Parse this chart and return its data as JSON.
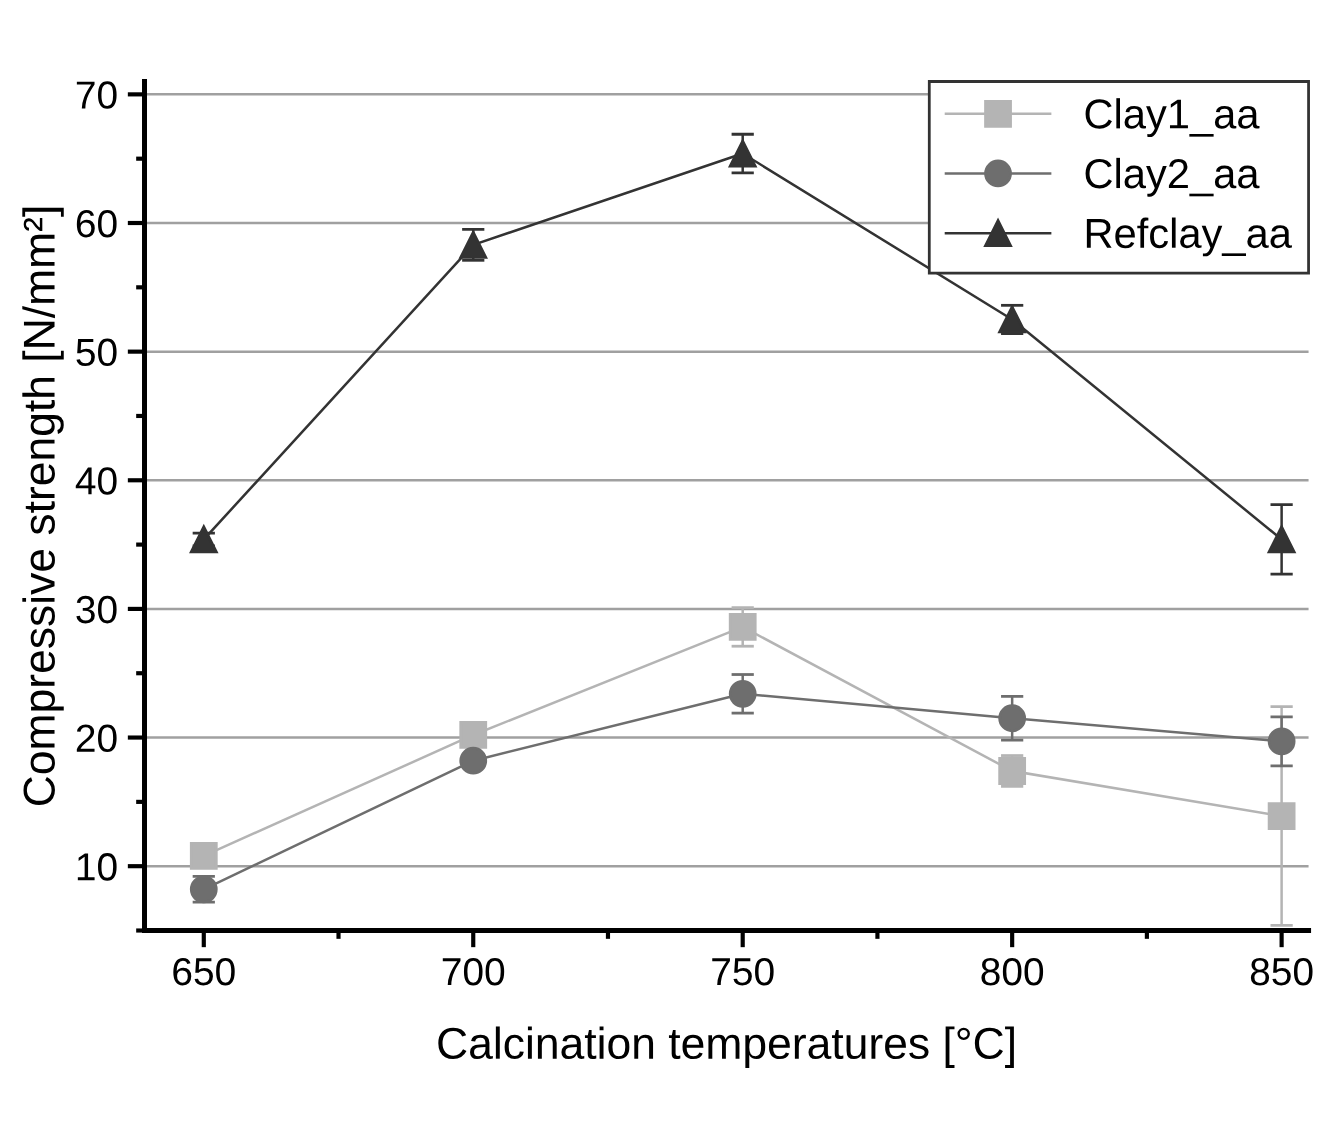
{
  "chart_data": {
    "type": "line",
    "xlabel": "Calcination temperatures [°C]",
    "ylabel": "Compressive strength [N/mm²]",
    "x": [
      650,
      700,
      750,
      800,
      850
    ],
    "series": [
      {
        "name": "Clay1_aa",
        "color": "#b4b4b4",
        "marker": "square",
        "values": [
          10.8,
          20.2,
          28.6,
          17.4,
          13.9
        ],
        "errors": [
          0.5,
          0.9,
          1.5,
          1.2,
          8.5
        ]
      },
      {
        "name": "Clay2_aa",
        "color": "#6e6e6e",
        "marker": "circle",
        "values": [
          8.2,
          18.2,
          23.4,
          21.5,
          19.7
        ],
        "errors": [
          1.0,
          0.5,
          1.5,
          1.7,
          1.9
        ]
      },
      {
        "name": "Refclay_aa",
        "color": "#333333",
        "marker": "triangle",
        "values": [
          35.4,
          58.3,
          65.4,
          52.5,
          35.4
        ],
        "errors": [
          0.5,
          1.2,
          1.5,
          1.1,
          2.7
        ]
      }
    ],
    "xlim": [
      639,
      855
    ],
    "xticks": [
      650,
      700,
      750,
      800,
      850
    ],
    "ylim": [
      5,
      71
    ],
    "yticks": [
      10,
      20,
      30,
      40,
      50,
      60,
      70
    ],
    "grid": "y",
    "legend": "top right",
    "line_style": "solid"
  }
}
